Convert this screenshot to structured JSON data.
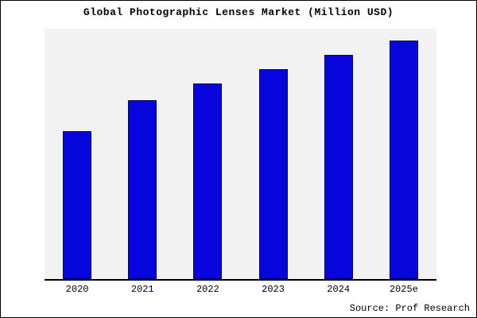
{
  "chart_data": {
    "type": "bar",
    "title": "Global Photographic Lenses Market (Million USD)",
    "categories": [
      "2020",
      "2021",
      "2022",
      "2023",
      "2024",
      "2025e"
    ],
    "values": [
      62,
      75,
      82,
      88,
      94,
      100
    ],
    "ylim": [
      0,
      105
    ],
    "xlabel": "",
    "ylabel": "",
    "grid": false,
    "legend": false,
    "y_axis_tick_labels_visible": false,
    "bar_color": "#0505DC",
    "bar_border_color": "#000060",
    "plot_background": "#f2f2f2",
    "source": "Source: Prof Research"
  }
}
